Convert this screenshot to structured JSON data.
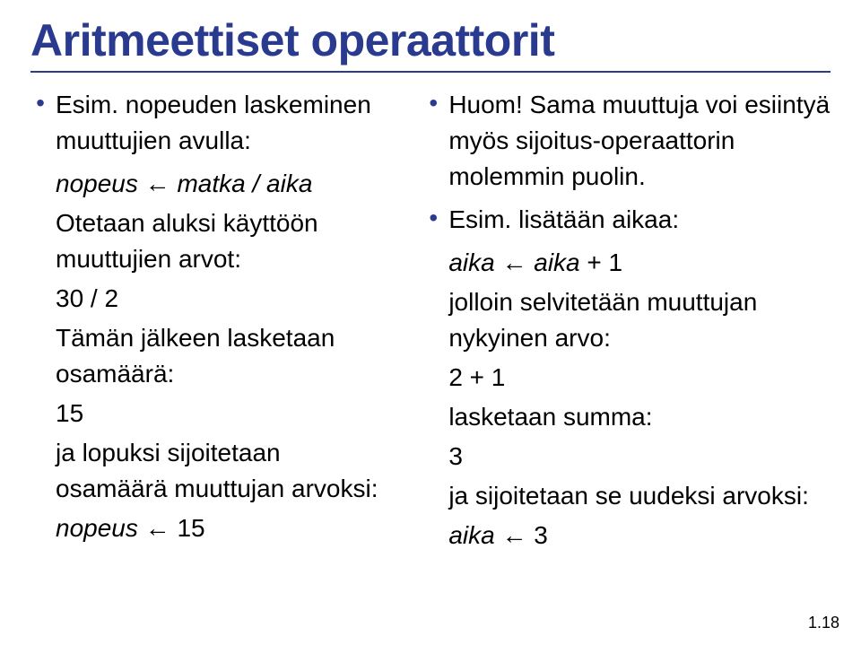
{
  "title": "Aritmeettiset operaattorit",
  "left": {
    "b1": "Esim. nopeuden laskeminen muuttujien avulla:",
    "l1a": "nopeus",
    "l1b": "matka",
    "l1c": "aika",
    "l2": "Otetaan aluksi käyttöön muuttujien arvot:",
    "l3": "30 / 2",
    "l4": "Tämän jälkeen lasketaan osamäärä:",
    "l5": "15",
    "l6": "ja lopuksi sijoitetaan osamäärä muuttujan arvoksi:",
    "l7a": "nopeus",
    "l7b": "15"
  },
  "right": {
    "b1": "Huom! Sama muuttuja voi esiintyä myös sijoitus-operaattorin molemmin puolin.",
    "b2": "Esim. lisätään aikaa:",
    "l1a": "aika",
    "l1b": "aika",
    "l1c": "+ 1",
    "l2": "jolloin selvitetään muuttujan nykyinen arvo:",
    "l3": "2 + 1",
    "l4": "lasketaan summa:",
    "l5": "3",
    "l6": "ja sijoitetaan se uudeksi arvoksi:",
    "l7a": "aika",
    "l7b": "3"
  },
  "slidenum": "1.18",
  "arrow": "←",
  "slash": " / "
}
